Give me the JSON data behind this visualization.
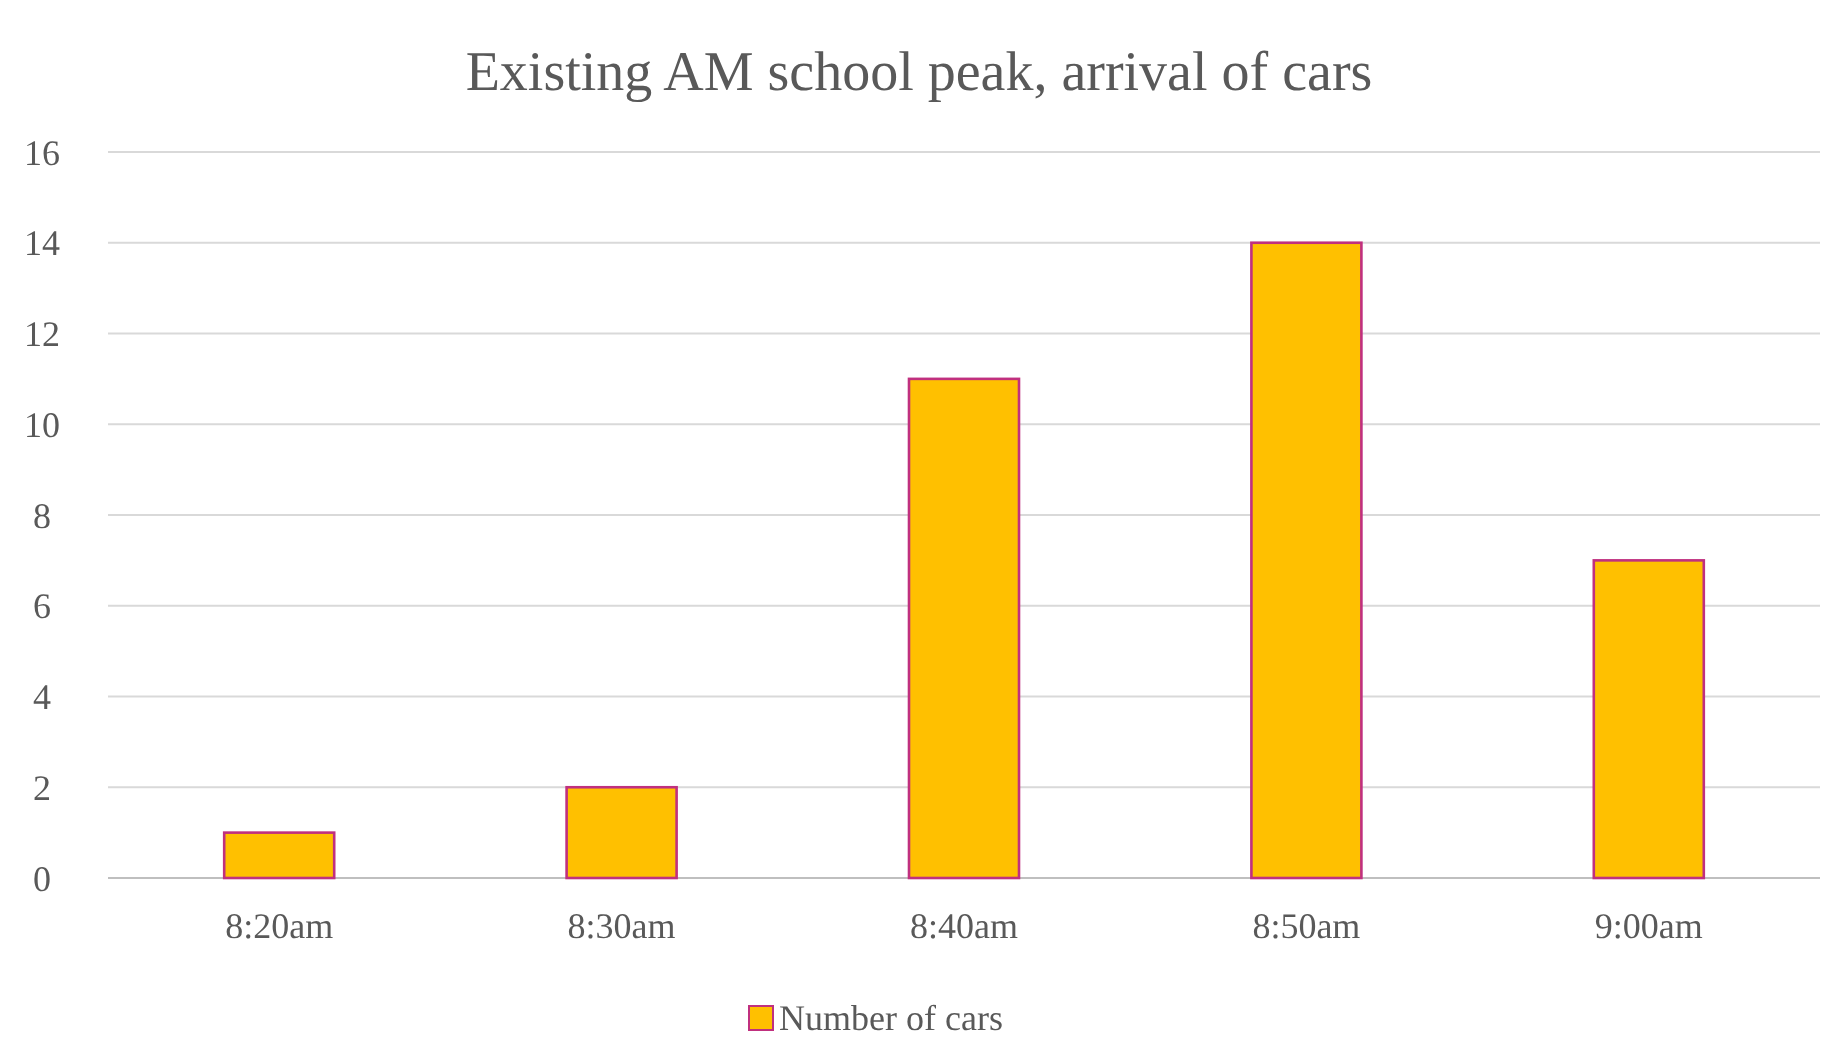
{
  "chart_data": {
    "type": "bar",
    "title": "Existing AM school peak, arrival of cars",
    "categories": [
      "8:20am",
      "8:30am",
      "8:40am",
      "8:50am",
      "9:00am"
    ],
    "series": [
      {
        "name": "Number of cars",
        "color": "#ffc000",
        "values": [
          1,
          2,
          11,
          14,
          7
        ]
      }
    ],
    "ylim": [
      0,
      16
    ],
    "yticks": [
      0,
      2,
      4,
      6,
      8,
      10,
      12,
      14,
      16
    ],
    "grid": "y",
    "legend": "bottom"
  }
}
